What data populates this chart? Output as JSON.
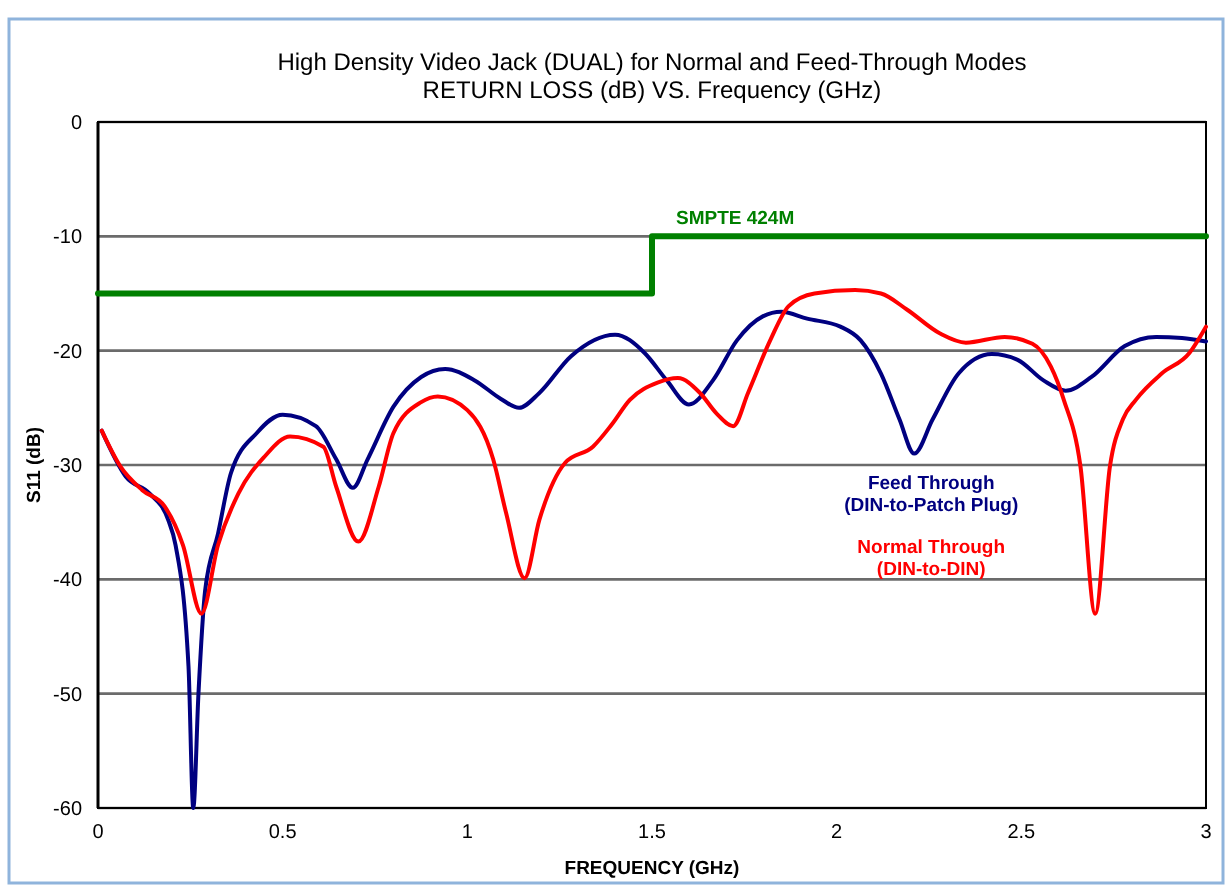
{
  "chart_data": {
    "type": "line",
    "title": "High Density Video Jack (DUAL) for Normal and Feed-Through Modes",
    "subtitle": "RETURN LOSS (dB) VS. Frequency (GHz)",
    "xlabel": "FREQUENCY (GHz)",
    "ylabel": "S11 (dB)",
    "xlim": [
      0,
      3
    ],
    "xticks": [
      0,
      0.5,
      1,
      1.5,
      2,
      2.5,
      3
    ],
    "ylim": [
      -60,
      0
    ],
    "yticks": [
      0,
      -10,
      -20,
      -30,
      -40,
      -50,
      -60
    ],
    "grid": "y",
    "series": [
      {
        "name": "Feed Through\n(DIN-to-Patch Plug)",
        "color": "#000080",
        "x": [
          0.01,
          0.075,
          0.14,
          0.19,
          0.21,
          0.245,
          0.258,
          0.272,
          0.29,
          0.325,
          0.36,
          0.43,
          0.5,
          0.59,
          0.645,
          0.69,
          0.73,
          0.8,
          0.875,
          0.94,
          1.02,
          1.09,
          1.14,
          1.195,
          1.28,
          1.4,
          1.48,
          1.54,
          1.6,
          1.665,
          1.73,
          1.8,
          1.85,
          1.92,
          2.01,
          2.065,
          2.12,
          2.17,
          2.21,
          2.26,
          2.33,
          2.42,
          2.49,
          2.56,
          2.62,
          2.69,
          2.78,
          2.865,
          2.935,
          3
        ],
        "values": [
          -27,
          -31,
          -32.5,
          -34.8,
          -37,
          -47.6,
          -60,
          -50,
          -41,
          -36,
          -30.7,
          -27.2,
          -25.6,
          -26.6,
          -29.5,
          -32,
          -29.5,
          -24.9,
          -22.3,
          -21.6,
          -22.6,
          -24.2,
          -25,
          -23.7,
          -20.5,
          -18.6,
          -20.2,
          -22.6,
          -24.7,
          -22.6,
          -19.1,
          -17,
          -16.6,
          -17.2,
          -17.9,
          -19.1,
          -22,
          -26,
          -29,
          -26,
          -22,
          -20.3,
          -20.8,
          -22.6,
          -23.5,
          -22.3,
          -19.6,
          -18.8,
          -18.9,
          -19.2
        ]
      },
      {
        "name": "Normal Through\n(DIN-to-DIN)",
        "color": "#ff0000",
        "x": [
          0.01,
          0.06,
          0.12,
          0.18,
          0.23,
          0.28,
          0.325,
          0.38,
          0.45,
          0.52,
          0.61,
          0.645,
          0.705,
          0.76,
          0.8,
          0.875,
          0.92,
          1.0,
          1.07,
          1.105,
          1.155,
          1.195,
          1.265,
          1.34,
          1.39,
          1.44,
          1.515,
          1.57,
          1.63,
          1.675,
          1.72,
          1.76,
          1.82,
          1.87,
          1.94,
          2.05,
          2.12,
          2.19,
          2.28,
          2.35,
          2.455,
          2.53,
          2.58,
          2.615,
          2.66,
          2.7,
          2.74,
          2.775,
          2.81,
          2.88,
          2.955,
          3
        ],
        "values": [
          -27,
          -30.1,
          -32.2,
          -33.6,
          -37,
          -43,
          -37,
          -32.5,
          -29.3,
          -27.5,
          -28.4,
          -31.9,
          -36.7,
          -31.9,
          -27.2,
          -24.5,
          -24,
          -25.2,
          -29.5,
          -34.2,
          -39.9,
          -34.8,
          -29.8,
          -28.4,
          -26.5,
          -24.3,
          -22.8,
          -22.4,
          -23.7,
          -25.5,
          -26.6,
          -23.7,
          -19.1,
          -16.1,
          -15,
          -14.7,
          -15,
          -16.4,
          -18.5,
          -19.3,
          -18.8,
          -19.4,
          -21.4,
          -24.3,
          -30.1,
          -43,
          -30.1,
          -26,
          -24.3,
          -22,
          -20.2,
          -17.9
        ]
      },
      {
        "name": "SMPTE 424M",
        "type": "step",
        "color": "#008000",
        "x": [
          0,
          1.5,
          3
        ],
        "values": [
          -15,
          -10,
          -10
        ]
      }
    ]
  }
}
